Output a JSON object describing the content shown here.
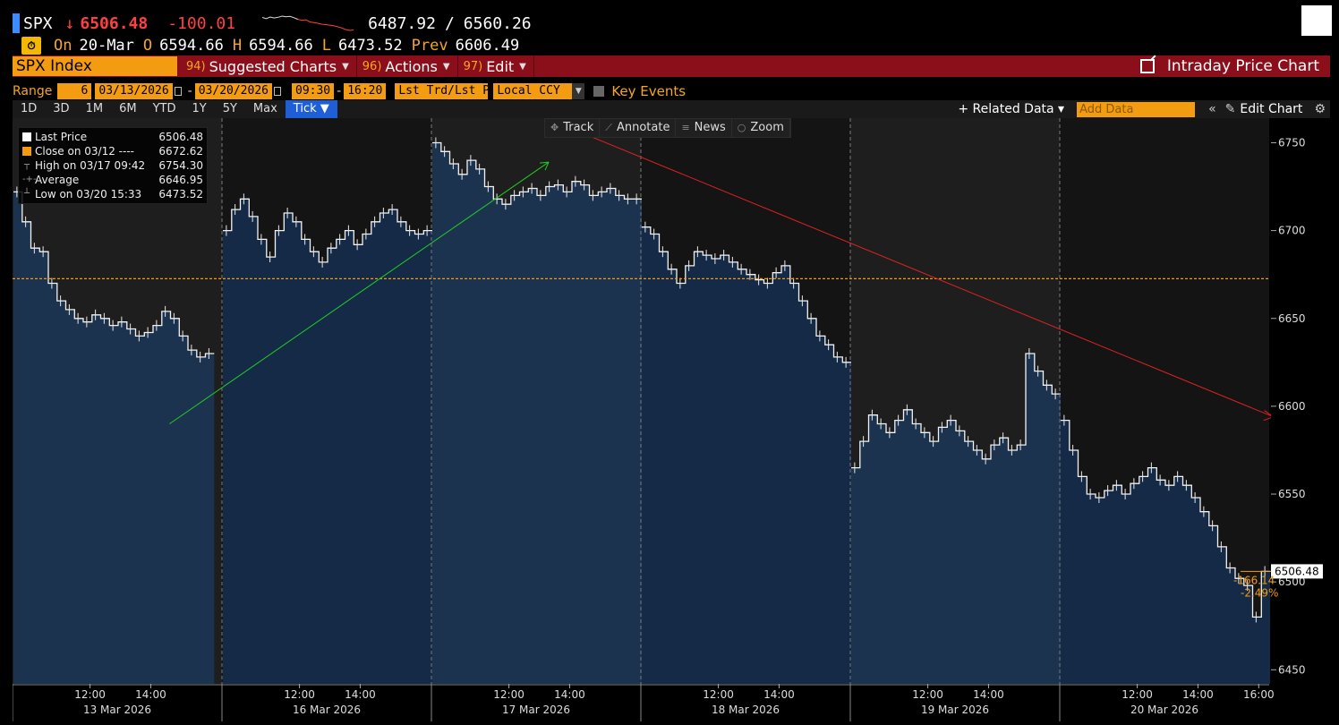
{
  "header": {
    "ticker": "SPX",
    "arrow": "↓",
    "last": "6506.48",
    "change": "-100.01",
    "range_low": "6487.92",
    "range_sep": "/",
    "range_high": "6560.26",
    "on_label": "On",
    "on_date": "20-Mar",
    "open_label": "O",
    "open": "6594.66",
    "high_label": "H",
    "high": "6594.66",
    "low_label": "L",
    "low": "6473.52",
    "prev_label": "Prev",
    "prev": "6606.49",
    "spark": [
      6560,
      6555,
      6562,
      6558,
      6561,
      6566,
      6563,
      6565,
      6559,
      6552,
      6548,
      6550,
      6541,
      6538,
      6535,
      6531,
      6529,
      6527,
      6524,
      6520,
      6515,
      6508,
      6504,
      6506
    ]
  },
  "menubar": {
    "security": "SPX Index",
    "items": [
      {
        "num": "94)",
        "label": "Suggested Charts"
      },
      {
        "num": "96)",
        "label": "Actions"
      },
      {
        "num": "97)",
        "label": "Edit"
      }
    ],
    "right_title": "Intraday Price Chart"
  },
  "rangebar": {
    "label": "Range",
    "period": "6",
    "start_date": "03/13/2026",
    "end_date": "03/20/2026",
    "start_time": "09:30",
    "end_time": "16:20",
    "price_mode": "Lst Trd/Lst P:",
    "currency": "Local CCY",
    "key_events": "Key Events"
  },
  "timeframes": [
    "1D",
    "3D",
    "1M",
    "6M",
    "YTD",
    "1Y",
    "5Y",
    "Max",
    "Tick ▼"
  ],
  "toolbar_right": {
    "related": "+ Related Data ▾",
    "add_data_placeholder": "Add Data",
    "collapse": "«",
    "edit_chart": "Edit Chart"
  },
  "chart_controls": [
    "Track",
    "Annotate",
    "News",
    "Zoom"
  ],
  "legend": [
    {
      "label": "Last Price",
      "value": "6506.48",
      "color": "#ffffff"
    },
    {
      "label": "Close on 03/12 ----",
      "value": "6672.62",
      "color": "#f39c12"
    },
    {
      "label": "High on 03/17 09:42",
      "value": "6754.30",
      "color": "#999999"
    },
    {
      "label": "Average",
      "value": "6646.95",
      "color": "#999999"
    },
    {
      "label": "Low on 03/20 15:33",
      "value": "6473.52",
      "color": "#999999"
    }
  ],
  "chart_data": {
    "type": "area",
    "ylim": [
      6442,
      6764
    ],
    "yticks": [
      6450,
      6500,
      6550,
      6600,
      6650,
      6700,
      6750
    ],
    "prev_close_line": 6672.62,
    "last_label": "6506.48",
    "last_change": "-166.14",
    "last_change_pct": "-2.49%",
    "days": [
      {
        "label": "13 Mar 2026",
        "times": [
          "12:00",
          "14:00"
        ],
        "values": [
          6722,
          6705,
          6690,
          6688,
          6670,
          6660,
          6655,
          6650,
          6648,
          6652,
          6650,
          6646,
          6648,
          6644,
          6640,
          6642,
          6646,
          6654,
          6650,
          6640,
          6632,
          6628,
          6630
        ]
      },
      {
        "label": "16 Mar 2026",
        "times": [
          "12:00",
          "14:00"
        ],
        "values": [
          6700,
          6712,
          6718,
          6708,
          6695,
          6685,
          6700,
          6710,
          6705,
          6695,
          6688,
          6682,
          6690,
          6695,
          6700,
          6692,
          6698,
          6705,
          6710,
          6712,
          6705,
          6700,
          6698,
          6700
        ]
      },
      {
        "label": "17 Mar 2026",
        "times": [
          "12:00",
          "14:00"
        ],
        "values": [
          6750,
          6745,
          6738,
          6732,
          6740,
          6735,
          6725,
          6718,
          6715,
          6720,
          6722,
          6724,
          6720,
          6725,
          6726,
          6722,
          6728,
          6726,
          6720,
          6722,
          6724,
          6720,
          6718,
          6718
        ]
      },
      {
        "label": "18 Mar 2026",
        "times": [
          "12:00",
          "14:00"
        ],
        "values": [
          6702,
          6698,
          6688,
          6678,
          6670,
          6680,
          6688,
          6686,
          6684,
          6686,
          6682,
          6678,
          6675,
          6672,
          6670,
          6676,
          6680,
          6670,
          6660,
          6650,
          6640,
          6635,
          6628,
          6625
        ]
      },
      {
        "label": "19 Mar 2026",
        "times": [
          "12:00",
          "14:00"
        ],
        "values": [
          6565,
          6580,
          6595,
          6590,
          6585,
          6592,
          6598,
          6590,
          6585,
          6580,
          6588,
          6592,
          6586,
          6580,
          6575,
          6570,
          6578,
          6582,
          6575,
          6578,
          6630,
          6620,
          6612,
          6607
        ]
      },
      {
        "label": "20 Mar 2026",
        "times": [
          "12:00",
          "14:00",
          "16:00"
        ],
        "values": [
          6592,
          6575,
          6560,
          6550,
          6548,
          6552,
          6555,
          6550,
          6556,
          6560,
          6565,
          6558,
          6555,
          6560,
          6555,
          6548,
          6540,
          6532,
          6520,
          6508,
          6502,
          6498,
          6480,
          6506
        ]
      }
    ]
  },
  "colors": {
    "accent": "#f39c12",
    "menubar": "#8b0f1a",
    "area": "#1c3350",
    "up_trend": "#22cc22",
    "down_trend": "#dd2222"
  }
}
